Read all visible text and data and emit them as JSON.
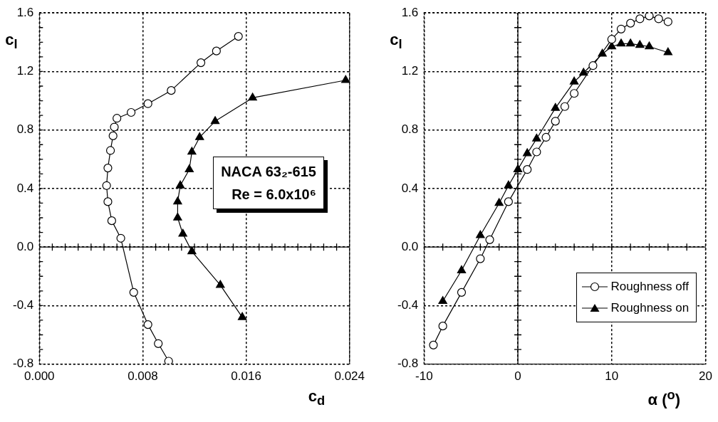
{
  "chart_data": [
    {
      "type": "line",
      "xlabel": "c$_{d}$",
      "ylabel": "c$_{l}$",
      "annotations": [
        "NACA 63₂-615",
        "Re = 6.0x10⁶"
      ],
      "grid": true,
      "legend": false,
      "xlim": [
        0,
        0.024
      ],
      "ylim": [
        -0.8,
        1.6
      ],
      "xticks": [
        {
          "value": 0,
          "label": "0.000"
        },
        {
          "value": 0.001,
          "label": null
        },
        {
          "value": 0.002,
          "label": null
        },
        {
          "value": 0.003,
          "label": null
        },
        {
          "value": 0.004,
          "label": null
        },
        {
          "value": 0.005,
          "label": null
        },
        {
          "value": 0.006,
          "label": null
        },
        {
          "value": 0.007,
          "label": null
        },
        0.008,
        {
          "value": 0.009,
          "label": null
        },
        {
          "value": 0.01,
          "label": null
        },
        {
          "value": 0.011,
          "label": null
        },
        {
          "value": 0.012,
          "label": null
        },
        {
          "value": 0.013,
          "label": null
        },
        {
          "value": 0.014,
          "label": null
        },
        {
          "value": 0.015,
          "label": null
        },
        0.016,
        {
          "value": 0.017,
          "label": null
        },
        {
          "value": 0.018,
          "label": null
        },
        {
          "value": 0.019,
          "label": null
        },
        {
          "value": 0.02,
          "label": null
        },
        {
          "value": 0.021,
          "label": null
        },
        {
          "value": 0.022,
          "label": null
        },
        {
          "value": 0.023,
          "label": null
        },
        0.024
      ],
      "yticks": [
        -0.8,
        {
          "value": -0.7,
          "label": null
        },
        {
          "value": -0.6,
          "label": null
        },
        {
          "value": -0.5,
          "label": null
        },
        -0.4,
        {
          "value": -0.3,
          "label": null
        },
        {
          "value": -0.2,
          "label": null
        },
        {
          "value": -0.1,
          "label": null
        },
        {
          "value": 0,
          "label": "0.0"
        },
        {
          "value": 0.1,
          "label": null
        },
        {
          "value": 0.2,
          "label": null
        },
        {
          "value": 0.3,
          "label": null
        },
        0.4,
        {
          "value": 0.5,
          "label": null
        },
        {
          "value": 0.6,
          "label": null
        },
        {
          "value": 0.7,
          "label": null
        },
        0.8,
        {
          "value": 0.9,
          "label": null
        },
        {
          "value": 1.0,
          "label": null
        },
        {
          "value": 1.1,
          "label": null
        },
        1.2,
        {
          "value": 1.3,
          "label": null
        },
        {
          "value": 1.4,
          "label": null
        },
        {
          "value": 1.5,
          "label": null
        },
        1.6
      ],
      "series": [
        {
          "color": "#000000",
          "marker": "circle",
          "x": [
            0.01,
            0.0092,
            0.0084,
            0.0073,
            0.0063,
            0.0056,
            0.0053,
            0.0052,
            0.0053,
            0.0055,
            0.0057,
            0.0058,
            0.006,
            0.0071,
            0.0084,
            0.0102,
            0.0125,
            0.0137,
            0.0154
          ],
          "values": [
            -0.78,
            -0.66,
            -0.53,
            -0.31,
            0.06,
            0.18,
            0.31,
            0.42,
            0.54,
            0.66,
            0.76,
            0.82,
            0.88,
            0.92,
            0.98,
            1.07,
            1.26,
            1.34,
            1.44
          ]
        },
        {
          "color": "#000000",
          "marker": "triangle",
          "x": [
            0.0157,
            0.014,
            0.0118,
            0.0111,
            0.0107,
            0.0107,
            0.0109,
            0.0116,
            0.0118,
            0.0124,
            0.0136,
            0.0165,
            0.0237
          ],
          "values": [
            -0.48,
            -0.26,
            -0.03,
            0.09,
            0.2,
            0.31,
            0.42,
            0.53,
            0.65,
            0.75,
            0.86,
            1.02,
            1.14
          ]
        }
      ]
    },
    {
      "type": "line",
      "xlabel": "α ($^{o}$)",
      "ylabel": "c$_{l}$",
      "grid": true,
      "legend": "bottom right",
      "xlim": [
        -10,
        20
      ],
      "ylim": [
        -0.8,
        1.6
      ],
      "xticks": [
        -10,
        {
          "value": -8,
          "label": null
        },
        {
          "value": -6,
          "label": null
        },
        {
          "value": -4,
          "label": null
        },
        {
          "value": -2,
          "label": null
        },
        0,
        {
          "value": 2,
          "label": null
        },
        {
          "value": 4,
          "label": null
        },
        {
          "value": 6,
          "label": null
        },
        {
          "value": 8,
          "label": null
        },
        10,
        {
          "value": 12,
          "label": null
        },
        {
          "value": 14,
          "label": null
        },
        {
          "value": 16,
          "label": null
        },
        {
          "value": 18,
          "label": null
        },
        20
      ],
      "yticks": [
        -0.8,
        {
          "value": -0.7,
          "label": null
        },
        {
          "value": -0.6,
          "label": null
        },
        {
          "value": -0.5,
          "label": null
        },
        -0.4,
        {
          "value": -0.3,
          "label": null
        },
        {
          "value": -0.2,
          "label": null
        },
        {
          "value": -0.1,
          "label": null
        },
        {
          "value": 0,
          "label": "0.0"
        },
        {
          "value": 0.1,
          "label": null
        },
        {
          "value": 0.2,
          "label": null
        },
        {
          "value": 0.3,
          "label": null
        },
        0.4,
        {
          "value": 0.5,
          "label": null
        },
        {
          "value": 0.6,
          "label": null
        },
        {
          "value": 0.7,
          "label": null
        },
        0.8,
        {
          "value": 0.9,
          "label": null
        },
        {
          "value": 1.0,
          "label": null
        },
        {
          "value": 1.1,
          "label": null
        },
        1.2,
        {
          "value": 1.3,
          "label": null
        },
        {
          "value": 1.4,
          "label": null
        },
        {
          "value": 1.5,
          "label": null
        },
        1.6
      ],
      "series": [
        {
          "name": "Roughness off",
          "color": "#000000",
          "marker": "circle",
          "x": [
            -9,
            -8,
            -6,
            -4,
            -3,
            -1,
            1,
            2,
            3,
            4,
            5,
            6,
            8,
            10,
            11,
            12,
            13,
            14,
            15,
            16
          ],
          "values": [
            -0.67,
            -0.54,
            -0.31,
            -0.08,
            0.05,
            0.31,
            0.53,
            0.65,
            0.75,
            0.86,
            0.96,
            1.05,
            1.24,
            1.42,
            1.49,
            1.53,
            1.56,
            1.58,
            1.56,
            1.54
          ]
        },
        {
          "name": "Roughness on",
          "color": "#000000",
          "marker": "triangle",
          "x": [
            -8,
            -6,
            -4,
            -2,
            -1,
            0,
            1,
            2,
            4,
            6,
            7,
            9,
            10,
            11,
            12,
            13,
            14,
            16
          ],
          "values": [
            -0.37,
            -0.16,
            0.08,
            0.3,
            0.42,
            0.53,
            0.64,
            0.74,
            0.95,
            1.13,
            1.19,
            1.32,
            1.37,
            1.39,
            1.39,
            1.38,
            1.37,
            1.33
          ]
        }
      ]
    }
  ]
}
